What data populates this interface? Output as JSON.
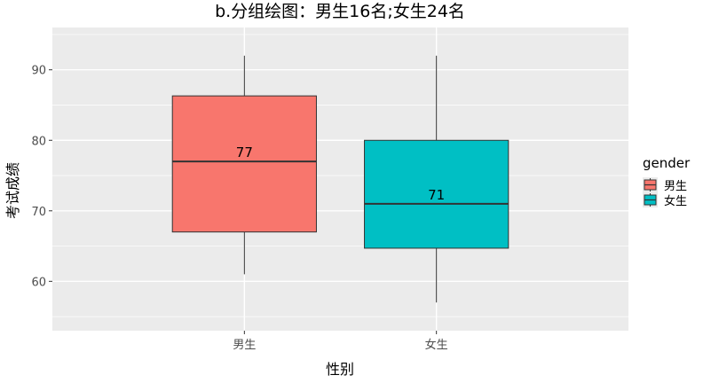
{
  "chart_data": {
    "type": "boxplot",
    "title": "b.分组绘图：男生16名;女生24名",
    "xlabel": "性别",
    "ylabel": "考试成绩",
    "categories": [
      "男生",
      "女生"
    ],
    "ylim": [
      53,
      96
    ],
    "yticks": [
      60,
      70,
      80,
      90
    ],
    "grid": true,
    "boxes": [
      {
        "category": "男生",
        "min": 61,
        "q1": 67,
        "median": 77,
        "q3": 86.3,
        "max": 92,
        "fill": "#F8766D",
        "label": "77"
      },
      {
        "category": "女生",
        "min": 57,
        "q1": 64.7,
        "median": 71,
        "q3": 80,
        "max": 92,
        "fill": "#00BFC4",
        "label": "71"
      }
    ],
    "legend": {
      "title": "gender",
      "position": "right",
      "entries": [
        {
          "label": "男生",
          "color": "#F8766D"
        },
        {
          "label": "女生",
          "color": "#00BFC4"
        }
      ]
    }
  },
  "colors": {
    "panel_bg": "#EBEBEB",
    "grid_major": "#FFFFFF",
    "box_stroke": "#333333"
  }
}
